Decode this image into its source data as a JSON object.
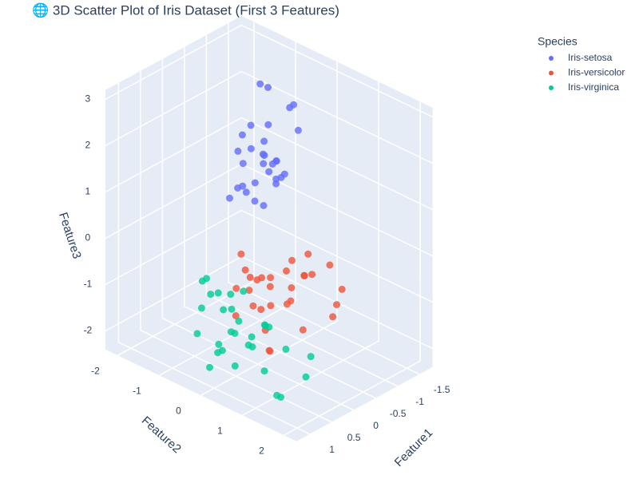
{
  "chart_data": {
    "type": "scatter3d",
    "title": "🌐 3D Scatter Plot of Iris Dataset (First 3 Features)",
    "x_label": "Feature1",
    "y_label": "Feature2",
    "z_label": "Feature3",
    "legend_title": "Species",
    "legend": "top-right",
    "xlim": [
      -1.8,
      1.3
    ],
    "ylim": [
      -2.3,
      2.3
    ],
    "zlim": [
      -2.4,
      3.2
    ],
    "xticks": [
      -1.5,
      -1,
      -0.5,
      0,
      0.5,
      1
    ],
    "yticks": [
      -2,
      -1,
      0,
      1,
      2
    ],
    "zticks": [
      -2,
      -1,
      0,
      1,
      2,
      3
    ],
    "grid": true,
    "series": [
      {
        "name": "Iris-setosa",
        "color": "#636efa",
        "x": [
          -0.9,
          -0.5,
          -0.7,
          -0.4,
          -1.0,
          -0.6,
          -0.8,
          -0.3,
          -1.1,
          -0.5,
          -0.7,
          -0.9,
          -0.4,
          -0.6,
          -1.2,
          -0.8,
          -0.5,
          -0.3,
          -0.7,
          -1.0,
          -0.6,
          -0.4,
          -0.9,
          -0.2,
          -0.8,
          -0.5,
          -1.1,
          -0.6,
          -0.7,
          -0.3
        ],
        "y": [
          -0.6,
          -0.9,
          -0.3,
          -0.8,
          -0.5,
          -0.2,
          -0.7,
          -1.0,
          -0.4,
          -0.6,
          -0.1,
          -0.9,
          -0.5,
          -0.8,
          -0.3,
          -0.4,
          -0.7,
          -0.6,
          -1.1,
          -0.2,
          -0.5,
          -0.3,
          -0.8,
          -0.7,
          -0.6,
          -0.4,
          -0.9,
          -0.2,
          -0.5,
          -0.8
        ],
        "z": [
          1.2,
          0.8,
          1.5,
          2.0,
          0.9,
          1.1,
          1.7,
          0.6,
          2.4,
          1.0,
          1.3,
          2.8,
          0.7,
          1.6,
          1.9,
          1.4,
          2.2,
          0.9,
          1.1,
          2.6,
          0.5,
          1.8,
          1.3,
          1.0,
          2.1,
          1.5,
          0.8,
          1.2,
          3.0,
          1.7
        ]
      },
      {
        "name": "Iris-versicolor",
        "color": "#ef553b",
        "x": [
          0.1,
          -0.2,
          0.3,
          0.0,
          -0.4,
          0.2,
          0.4,
          -0.1,
          0.1,
          -0.3,
          0.5,
          0.0,
          0.2,
          -0.2,
          0.3,
          0.6,
          -0.1,
          0.1,
          0.4,
          -0.5,
          0.2,
          0.0,
          0.3,
          -0.3,
          0.1,
          0.5,
          -0.1,
          0.2,
          0.4,
          0.0
        ],
        "y": [
          0.4,
          0.9,
          0.2,
          1.3,
          1.6,
          0.0,
          0.6,
          1.1,
          -0.2,
          0.5,
          0.8,
          1.8,
          0.3,
          -0.4,
          1.0,
          0.1,
          0.7,
          2.0,
          -0.1,
          1.2,
          0.5,
          0.3,
          1.4,
          0.8,
          -0.3,
          0.6,
          0.2,
          1.0,
          0.4,
          0.7
        ],
        "z": [
          -0.5,
          -0.2,
          -0.9,
          0.1,
          -0.3,
          -0.7,
          -1.2,
          0.4,
          -0.4,
          -0.1,
          -1.5,
          -0.6,
          -0.3,
          -0.8,
          0.2,
          -1.0,
          -0.5,
          -0.2,
          -0.6,
          0.0,
          -1.8,
          -0.4,
          -0.9,
          -0.3,
          -0.1,
          -0.7,
          -1.1,
          -0.5,
          -0.2,
          -0.8
        ]
      },
      {
        "name": "Iris-virginica",
        "color": "#00cc96",
        "x": [
          0.8,
          1.0,
          0.6,
          0.9,
          1.1,
          0.7,
          0.5,
          1.0,
          0.8,
          0.6,
          1.2,
          0.9,
          0.7,
          0.4,
          1.0,
          0.8,
          0.6,
          1.1,
          0.9,
          0.5,
          0.7,
          1.0,
          0.8,
          0.6,
          0.9,
          1.1,
          0.7,
          0.5,
          0.8,
          1.0
        ],
        "y": [
          0.2,
          -0.3,
          0.5,
          0.8,
          0.0,
          -0.6,
          1.2,
          0.4,
          -0.1,
          0.9,
          0.3,
          1.5,
          -0.4,
          0.6,
          0.1,
          1.0,
          -0.2,
          0.7,
          0.4,
          1.8,
          -0.5,
          0.2,
          1.3,
          0.0,
          0.6,
          -0.3,
          0.9,
          0.3,
          2.0,
          0.5
        ],
        "z": [
          -1.2,
          -0.8,
          -1.5,
          -1.0,
          -1.9,
          -0.5,
          -1.3,
          -0.2,
          -1.6,
          -0.9,
          -1.4,
          -2.0,
          -0.7,
          -1.1,
          -0.3,
          -1.7,
          -1.0,
          -0.6,
          -1.8,
          -1.2,
          -0.4,
          -1.5,
          -2.1,
          -0.9,
          -0.1,
          -1.3,
          -0.8,
          -1.6,
          -1.4,
          -1.0
        ]
      }
    ]
  }
}
